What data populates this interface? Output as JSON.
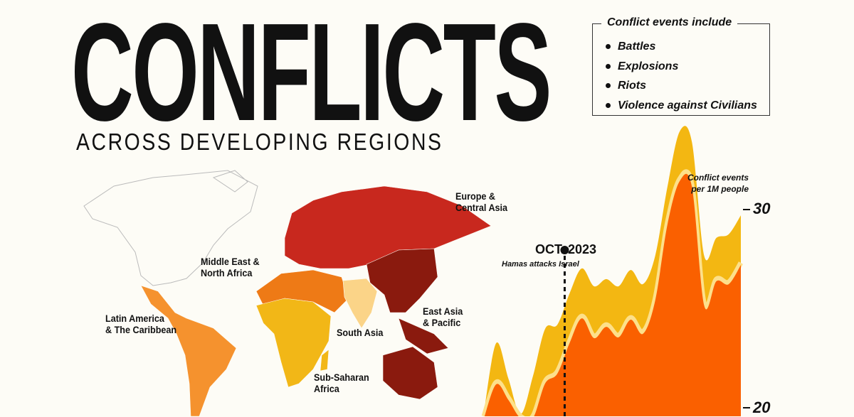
{
  "header": {
    "title": "CONFLICTS",
    "subtitle": "ACROSS DEVELOPING REGIONS"
  },
  "legend": {
    "title": "Conflict events include",
    "items": [
      "Battles",
      "Explosions",
      "Riots",
      "Violence against Civilians"
    ]
  },
  "map": {
    "regions": [
      {
        "name": "Europe & Central Asia",
        "line1": "Europe &",
        "line2": "Central Asia",
        "color": "#c8281e"
      },
      {
        "name": "East Asia & Pacific",
        "line1": "East Asia",
        "line2": "& Pacific",
        "color": "#8a1a0e"
      },
      {
        "name": "Middle East & North Africa",
        "line1": "Middle East &",
        "line2": "North Africa",
        "color": "#ee7a16"
      },
      {
        "name": "Latin America & The Caribbean",
        "line1": "Latin America",
        "line2": "& The Caribbean",
        "color": "#f5922e"
      },
      {
        "name": "Sub-Saharan Africa",
        "line1": "Sub-Saharan",
        "line2": "Africa",
        "color": "#f2b717"
      },
      {
        "name": "South Asia",
        "line1": "South Asia",
        "line2": "",
        "color": "#fbd488"
      }
    ]
  },
  "chart_data": {
    "type": "area",
    "ylabel": "Conflict events per 1M people",
    "ylabel_line1": "Conflict events",
    "ylabel_line2": "per 1M people",
    "yticks": [
      "30",
      "20"
    ],
    "ylim": [
      19.6,
      34.5
    ],
    "series": [
      {
        "color": "#f3b712",
        "values": [
          19.78,
          23.26,
          21.47,
          19.68,
          21.58,
          23.98,
          24.19,
          25.77,
          27.03,
          26.13,
          26.49,
          26.13,
          26.95,
          26.24,
          27.67,
          31.15,
          33.94,
          33.41,
          27.67,
          28.57,
          28.75,
          29.71
        ]
      },
      {
        "color": "#fa6000",
        "values": [
          19.57,
          21.29,
          20.5,
          19.57,
          19.57,
          21.33,
          21.83,
          23.37,
          24.62,
          23.62,
          24.19,
          23.66,
          24.55,
          23.84,
          25.52,
          29.35,
          31.54,
          31.25,
          25.27,
          26.49,
          26.34,
          27.31
        ]
      }
    ],
    "band_color": "#fde08a",
    "annotation": {
      "date": "OCT. 2023",
      "text": "Hamas attacks Israel",
      "index": 6.6
    }
  }
}
